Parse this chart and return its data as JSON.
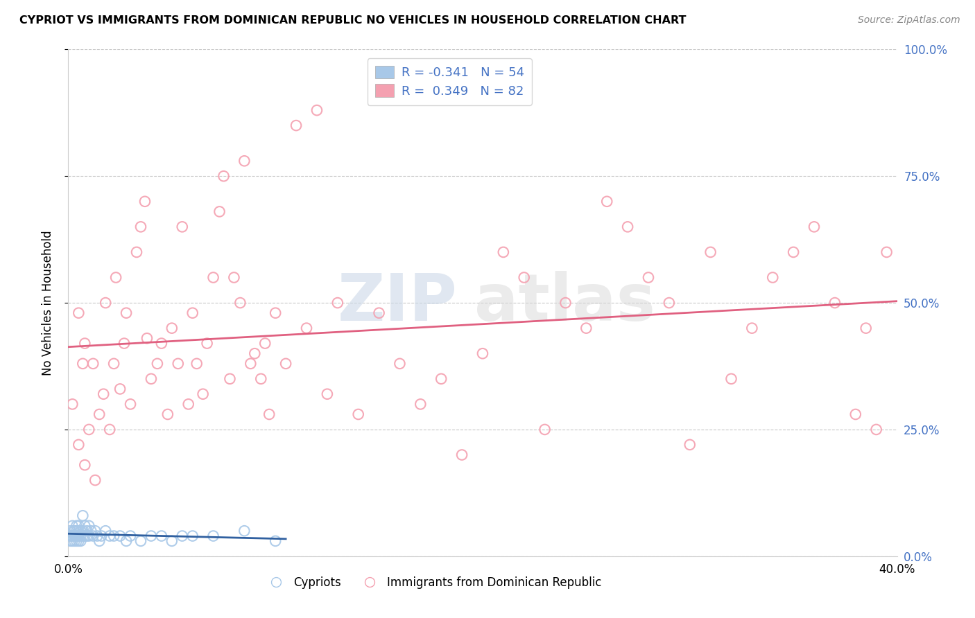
{
  "title": "CYPRIOT VS IMMIGRANTS FROM DOMINICAN REPUBLIC NO VEHICLES IN HOUSEHOLD CORRELATION CHART",
  "source": "Source: ZipAtlas.com",
  "ylabel": "No Vehicles in Household",
  "x_label_cypriot": "Cypriots",
  "x_label_dominican": "Immigrants from Dominican Republic",
  "xlim": [
    0.0,
    0.4
  ],
  "ylim": [
    0.0,
    1.0
  ],
  "xticks": [
    0.0,
    0.1,
    0.2,
    0.3,
    0.4
  ],
  "yticks": [
    0.0,
    0.25,
    0.5,
    0.75,
    1.0
  ],
  "ytick_labels_right": [
    "0.0%",
    "25.0%",
    "50.0%",
    "75.0%",
    "100.0%"
  ],
  "color_cypriot": "#a8c8e8",
  "color_dominican": "#f4a0b0",
  "color_trendline_cypriot": "#3060a0",
  "color_trendline_dominican": "#e06080",
  "color_blue_text": "#4472c4",
  "watermark_zip": "ZIP",
  "watermark_atlas": "atlas",
  "cypriot_x": [
    0.0008,
    0.001,
    0.001,
    0.0015,
    0.002,
    0.002,
    0.002,
    0.0025,
    0.003,
    0.003,
    0.003,
    0.0035,
    0.004,
    0.004,
    0.004,
    0.004,
    0.0045,
    0.005,
    0.005,
    0.005,
    0.005,
    0.006,
    0.006,
    0.006,
    0.007,
    0.007,
    0.007,
    0.008,
    0.008,
    0.009,
    0.009,
    0.01,
    0.01,
    0.011,
    0.012,
    0.013,
    0.014,
    0.015,
    0.016,
    0.018,
    0.02,
    0.022,
    0.025,
    0.028,
    0.03,
    0.035,
    0.04,
    0.045,
    0.05,
    0.055,
    0.06,
    0.07,
    0.085,
    0.1
  ],
  "cypriot_y": [
    0.04,
    0.03,
    0.05,
    0.04,
    0.03,
    0.04,
    0.06,
    0.05,
    0.03,
    0.04,
    0.05,
    0.04,
    0.03,
    0.04,
    0.05,
    0.06,
    0.04,
    0.03,
    0.04,
    0.05,
    0.06,
    0.03,
    0.04,
    0.05,
    0.04,
    0.05,
    0.08,
    0.04,
    0.06,
    0.04,
    0.05,
    0.04,
    0.06,
    0.05,
    0.04,
    0.05,
    0.04,
    0.03,
    0.04,
    0.05,
    0.04,
    0.04,
    0.04,
    0.03,
    0.04,
    0.03,
    0.04,
    0.04,
    0.03,
    0.04,
    0.04,
    0.04,
    0.05,
    0.03
  ],
  "dominican_x": [
    0.002,
    0.005,
    0.007,
    0.008,
    0.01,
    0.012,
    0.013,
    0.015,
    0.017,
    0.018,
    0.02,
    0.022,
    0.023,
    0.025,
    0.027,
    0.028,
    0.03,
    0.033,
    0.035,
    0.037,
    0.038,
    0.04,
    0.043,
    0.045,
    0.048,
    0.05,
    0.053,
    0.055,
    0.058,
    0.06,
    0.062,
    0.065,
    0.067,
    0.07,
    0.073,
    0.075,
    0.078,
    0.08,
    0.083,
    0.085,
    0.088,
    0.09,
    0.093,
    0.095,
    0.097,
    0.1,
    0.105,
    0.11,
    0.115,
    0.12,
    0.125,
    0.13,
    0.14,
    0.15,
    0.16,
    0.17,
    0.18,
    0.19,
    0.2,
    0.21,
    0.22,
    0.23,
    0.24,
    0.25,
    0.26,
    0.27,
    0.28,
    0.29,
    0.3,
    0.31,
    0.32,
    0.33,
    0.34,
    0.35,
    0.36,
    0.37,
    0.38,
    0.385,
    0.39,
    0.395,
    0.005,
    0.008
  ],
  "dominican_y": [
    0.3,
    0.22,
    0.38,
    0.42,
    0.25,
    0.38,
    0.15,
    0.28,
    0.32,
    0.5,
    0.25,
    0.38,
    0.55,
    0.33,
    0.42,
    0.48,
    0.3,
    0.6,
    0.65,
    0.7,
    0.43,
    0.35,
    0.38,
    0.42,
    0.28,
    0.45,
    0.38,
    0.65,
    0.3,
    0.48,
    0.38,
    0.32,
    0.42,
    0.55,
    0.68,
    0.75,
    0.35,
    0.55,
    0.5,
    0.78,
    0.38,
    0.4,
    0.35,
    0.42,
    0.28,
    0.48,
    0.38,
    0.85,
    0.45,
    0.88,
    0.32,
    0.5,
    0.28,
    0.48,
    0.38,
    0.3,
    0.35,
    0.2,
    0.4,
    0.6,
    0.55,
    0.25,
    0.5,
    0.45,
    0.7,
    0.65,
    0.55,
    0.5,
    0.22,
    0.6,
    0.35,
    0.45,
    0.55,
    0.6,
    0.65,
    0.5,
    0.28,
    0.45,
    0.25,
    0.6,
    0.48,
    0.18
  ]
}
